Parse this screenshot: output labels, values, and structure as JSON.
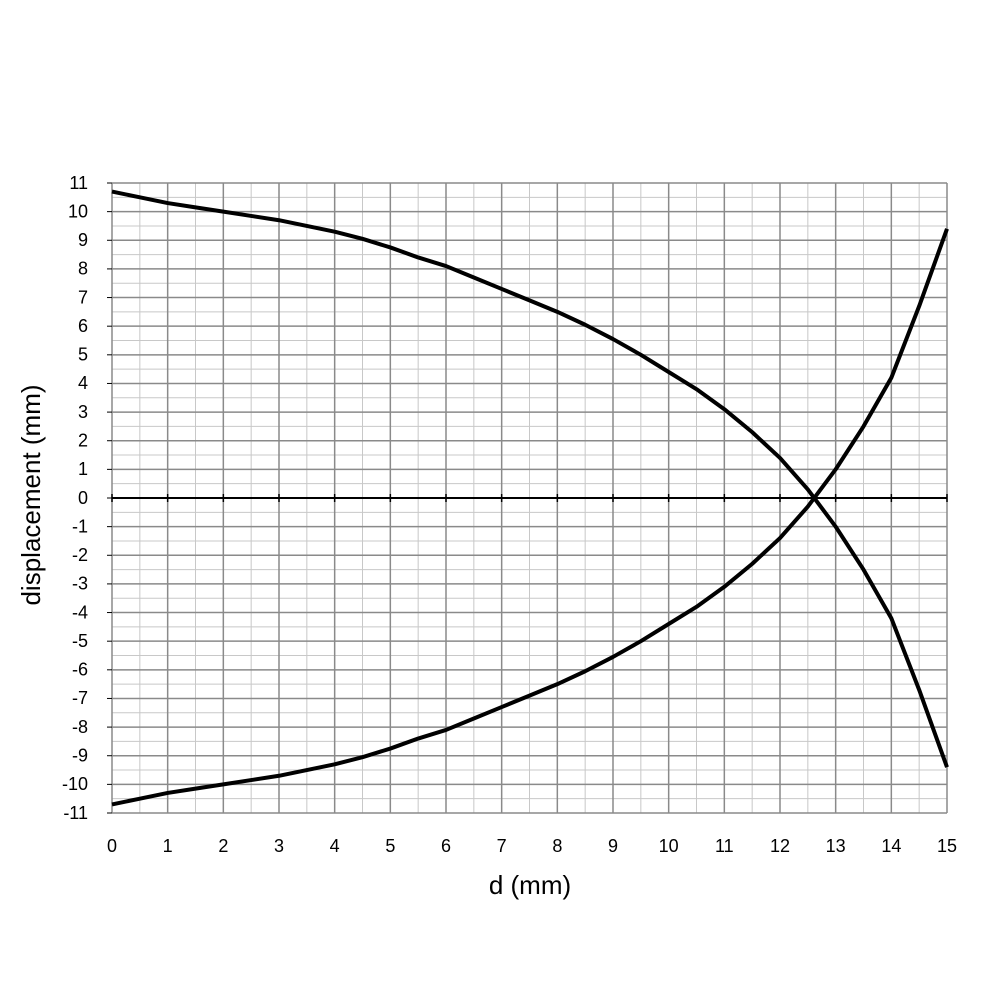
{
  "chart_data": {
    "type": "line",
    "xlabel": "d (mm)",
    "ylabel": "displacement (mm)",
    "x": [
      0,
      0.5,
      1,
      1.5,
      2,
      2.5,
      3,
      3.5,
      4,
      4.5,
      5,
      5.5,
      6,
      6.5,
      7,
      7.5,
      8,
      8.5,
      9,
      9.5,
      10,
      10.5,
      11,
      11.5,
      12,
      12.5,
      13,
      13.5,
      14,
      14.5,
      15
    ],
    "series": [
      {
        "color": "#000000",
        "values": [
          10.7,
          10.5,
          10.3,
          10.15,
          10.0,
          9.85,
          9.7,
          9.5,
          9.3,
          9.05,
          8.75,
          8.4,
          8.1,
          7.7,
          7.3,
          6.9,
          6.5,
          6.05,
          5.55,
          5.0,
          4.4,
          3.8,
          3.1,
          2.3,
          1.4,
          0.3,
          -1.0,
          -2.5,
          -4.2,
          -6.7,
          -9.4
        ]
      },
      {
        "color": "#000000",
        "values": [
          -10.7,
          -10.5,
          -10.3,
          -10.15,
          -10.0,
          -9.85,
          -9.7,
          -9.5,
          -9.3,
          -9.05,
          -8.75,
          -8.4,
          -8.1,
          -7.7,
          -7.3,
          -6.9,
          -6.5,
          -6.05,
          -5.55,
          -5.0,
          -4.4,
          -3.8,
          -3.1,
          -2.3,
          -1.4,
          -0.3,
          1.0,
          2.5,
          4.2,
          6.7,
          9.4
        ]
      }
    ],
    "xlim": [
      0,
      15
    ],
    "xticks": [
      0,
      1,
      2,
      3,
      4,
      5,
      6,
      7,
      8,
      9,
      10,
      11,
      12,
      13,
      14,
      15
    ],
    "ylim": [
      -11,
      11
    ],
    "yticks": [
      -11,
      -10,
      -9,
      -8,
      -7,
      -6,
      -5,
      -4,
      -3,
      -2,
      -1,
      0,
      1,
      2,
      3,
      4,
      5,
      6,
      7,
      8,
      9,
      10,
      11
    ],
    "grid": true,
    "minor_grid": true
  }
}
